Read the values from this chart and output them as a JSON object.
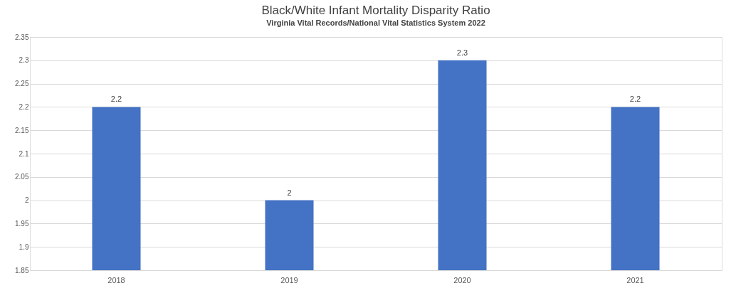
{
  "chart_data": {
    "type": "bar",
    "title": "Black/White Infant Mortality Disparity Ratio",
    "subtitle": "Virginia Vital Records/National Vital Statistics System 2022",
    "categories": [
      "2018",
      "2019",
      "2020",
      "2021"
    ],
    "values": [
      2.2,
      2,
      2.3,
      2.2
    ],
    "color": "#4472c4",
    "ylim": [
      1.85,
      2.35
    ],
    "yticks": [
      1.85,
      1.9,
      1.95,
      2,
      2.05,
      2.1,
      2.15,
      2.2,
      2.25,
      2.3,
      2.35
    ],
    "grid": "y",
    "data_labels": true
  }
}
